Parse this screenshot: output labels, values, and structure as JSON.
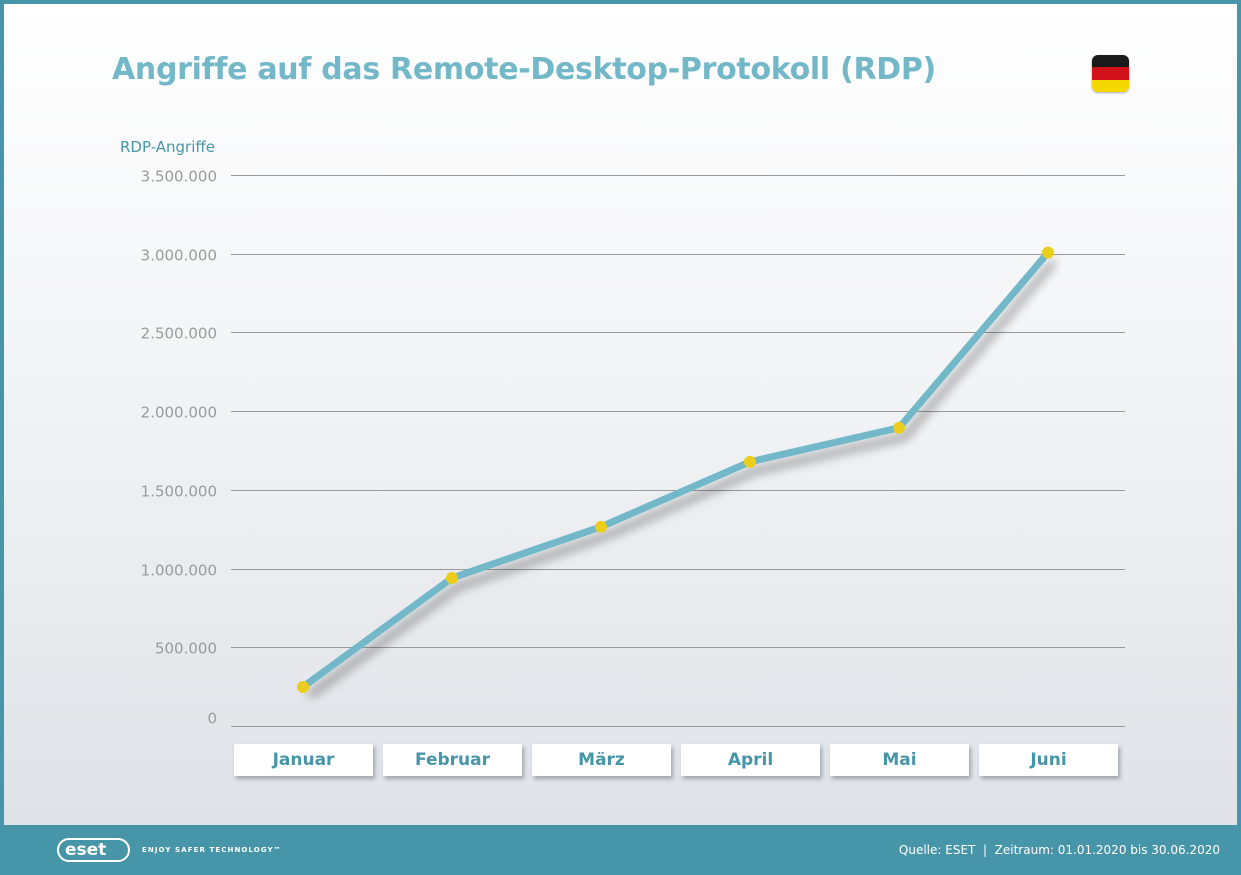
{
  "header": {
    "title": "Angriffe auf das Remote-Desktop-Protokoll (RDP)",
    "flag": {
      "name": "germany-flag",
      "colors": [
        "#1a1a1a",
        "#d2121b",
        "#f5d800"
      ]
    }
  },
  "colors": {
    "frame": "#4795a8",
    "title": "#72b8c8",
    "line": "#72b8c8",
    "marker": "#eccd1c",
    "gridline": "#9a9a9a",
    "tick_text": "#9a9a9a",
    "month_text": "#4795a8"
  },
  "chart_data": {
    "type": "line",
    "title": "Angriffe auf das Remote-Desktop-Protokoll (RDP)",
    "xlabel": "",
    "ylabel": "RDP-Angriffe",
    "categories": [
      "Januar",
      "Februar",
      "März",
      "April",
      "Mai",
      "Juni"
    ],
    "series": [
      {
        "name": "RDP-Angriffe",
        "values": [
          248000,
          940000,
          1265000,
          1678000,
          1894000,
          3007000
        ]
      }
    ],
    "ylim": [
      0,
      3500000
    ],
    "yticks": [
      0,
      500000,
      1000000,
      1500000,
      2000000,
      2500000,
      3000000,
      3500000
    ],
    "ytick_labels": [
      "0",
      "500.000",
      "1.000.000",
      "1.500.000",
      "2.000.000",
      "2.500.000",
      "3.000.000",
      "3.500.000"
    ],
    "grid": true,
    "legend": "none"
  },
  "footer": {
    "logo_text": "eset",
    "tagline": "ENJOY SAFER TECHNOLOGY™",
    "source": "Quelle: ESET  |  Zeitraum: 01.01.2020 bis 30.06.2020"
  }
}
